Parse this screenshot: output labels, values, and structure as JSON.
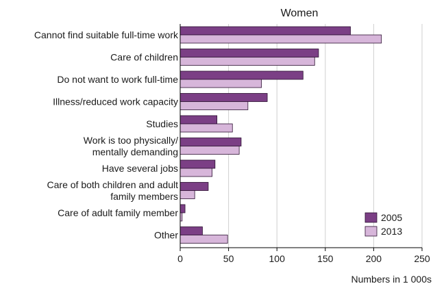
{
  "chart_data": {
    "type": "bar",
    "orientation": "horizontal",
    "title": "Women",
    "xlabel": "Numbers in 1 000s",
    "ylabel": "",
    "xlim": [
      0,
      250
    ],
    "xticks": [
      0,
      50,
      100,
      150,
      200,
      250
    ],
    "grid": "vertical",
    "legend_position": "bottom-right",
    "categories": [
      [
        "Cannot find suitable full-time work"
      ],
      [
        "Care of children"
      ],
      [
        "Do not want to work full-time"
      ],
      [
        "Illness/reduced work capacity"
      ],
      [
        "Studies"
      ],
      [
        "Work is too physically/",
        "mentally demanding"
      ],
      [
        "Have several jobs"
      ],
      [
        "Care of both children and adult",
        "family members"
      ],
      [
        "Care of adult family member"
      ],
      [
        "Other"
      ]
    ],
    "series": [
      {
        "name": "2005",
        "color": "#7b3f85",
        "values": [
          176,
          143,
          127,
          90,
          38,
          63,
          36,
          29,
          5,
          23
        ]
      },
      {
        "name": "2013",
        "color": "#d7b6da",
        "values": [
          208,
          139,
          84,
          70,
          54,
          61,
          33,
          15,
          2,
          49
        ]
      }
    ]
  }
}
